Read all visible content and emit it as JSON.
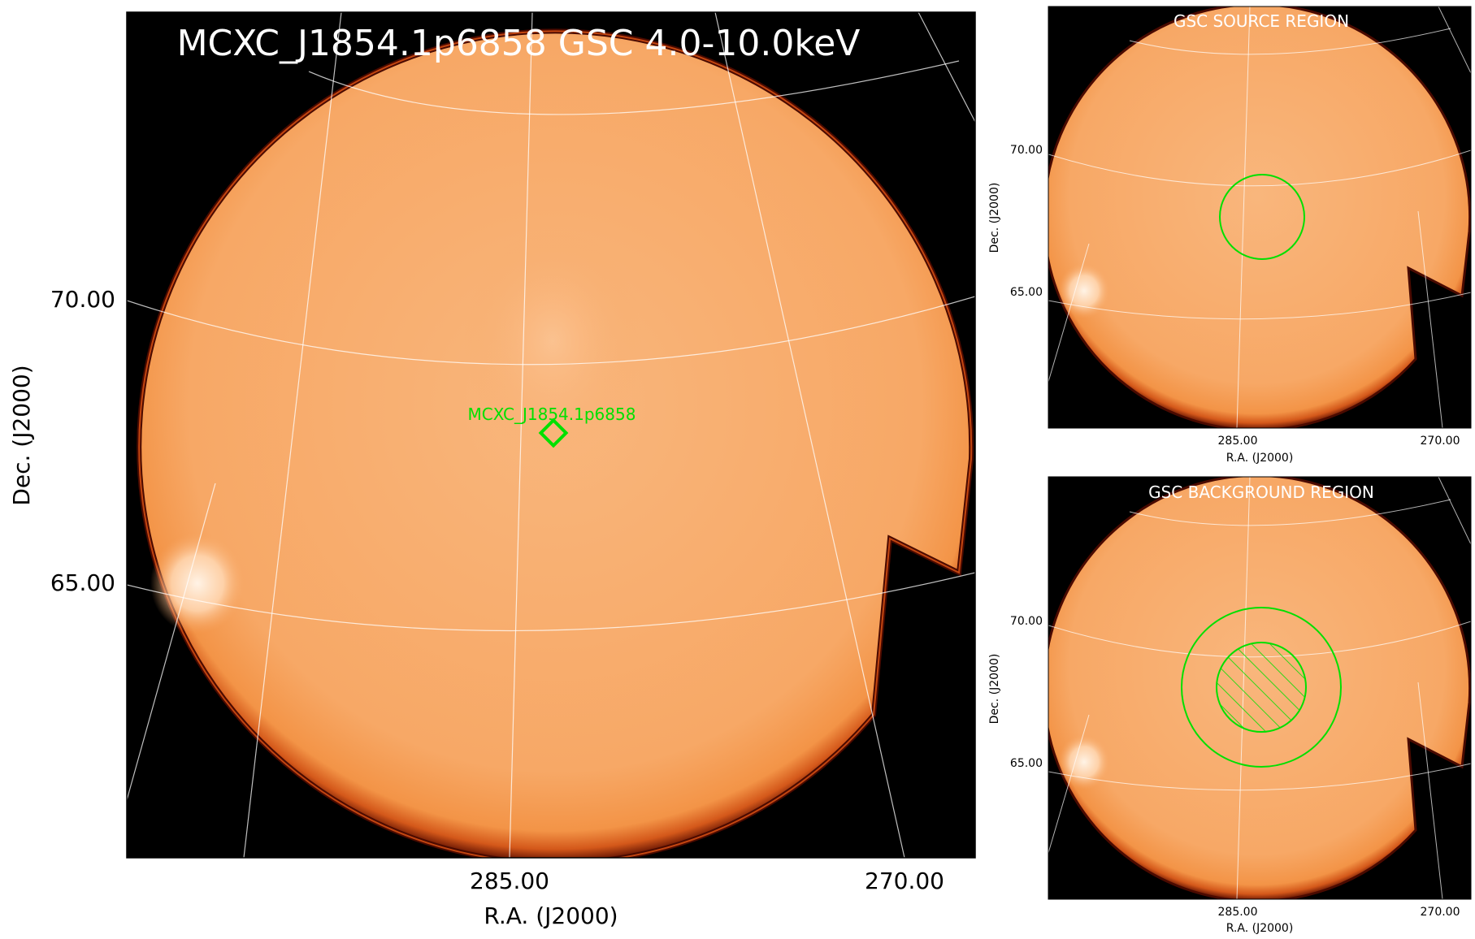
{
  "main": {
    "title": "MCXC_J1854.1p6858 GSC 4.0-10.0keV",
    "source_label": "MCXC_J1854.1p6858",
    "xlabel": "R.A. (J2000)",
    "ylabel": "Dec. (J2000)",
    "xticks": [
      "285.00",
      "270.00"
    ],
    "yticks": [
      "70.00",
      "65.00"
    ]
  },
  "source_panel": {
    "title": "GSC SOURCE REGION",
    "xlabel": "R.A. (J2000)",
    "ylabel": "Dec. (J2000)",
    "xticks": [
      "285.00",
      "270.00"
    ],
    "yticks": [
      "70.00",
      "65.00"
    ]
  },
  "background_panel": {
    "title": "GSC BACKGROUND REGION",
    "xlabel": "R.A. (J2000)",
    "ylabel": "Dec. (J2000)",
    "xticks": [
      "285.00",
      "270.00"
    ],
    "yticks": [
      "70.00",
      "65.00"
    ]
  },
  "colors": {
    "image_fill": "#f6a361",
    "image_bright": "#ffe8d2",
    "rim": "#7a1500",
    "background": "#000000",
    "region": "#00e000",
    "grid": "#ffffff"
  }
}
